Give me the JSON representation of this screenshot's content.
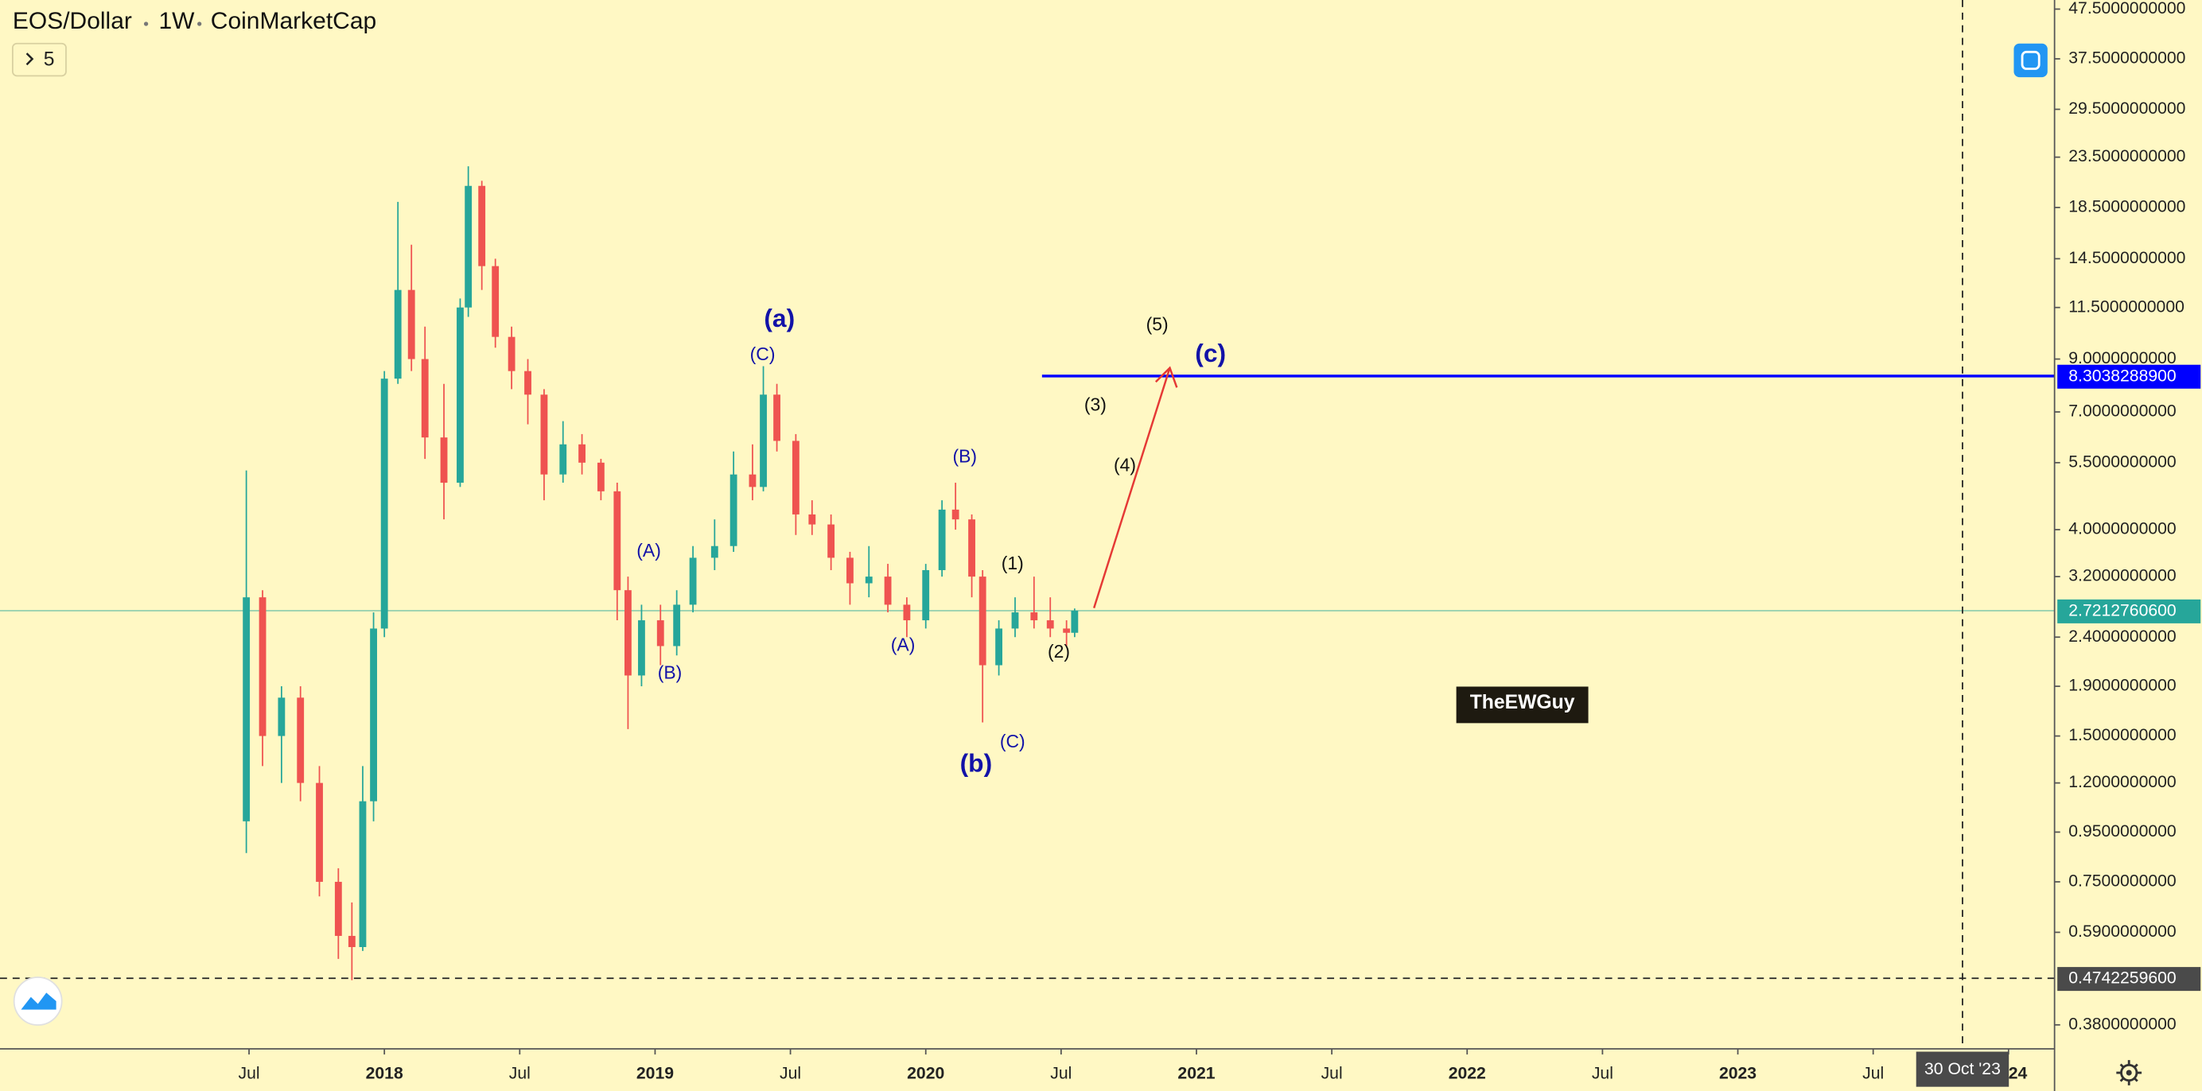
{
  "chart_data": {
    "type": "candlestick",
    "symbol": "EOS/Dollar",
    "interval": "1W",
    "source": "CoinMarketCap",
    "indicators_count": 5,
    "log_scale": true,
    "up_color": "#26a69a",
    "down_color": "#ef5350",
    "xlim": [
      2016.58,
      2024.17
    ],
    "ylim": [
      0.339,
      49.6
    ],
    "xticks": [
      {
        "value": 2017.5,
        "label": "Jul"
      },
      {
        "value": 2018,
        "label": "2018"
      },
      {
        "value": 2018.5,
        "label": "Jul"
      },
      {
        "value": 2019,
        "label": "2019"
      },
      {
        "value": 2019.5,
        "label": "Jul"
      },
      {
        "value": 2020,
        "label": "2020"
      },
      {
        "value": 2020.5,
        "label": "Jul"
      },
      {
        "value": 2021,
        "label": "2021"
      },
      {
        "value": 2021.5,
        "label": "Jul"
      },
      {
        "value": 2022,
        "label": "2022"
      },
      {
        "value": 2022.5,
        "label": "Jul"
      },
      {
        "value": 2023,
        "label": "2023"
      },
      {
        "value": 2023.5,
        "label": "Jul"
      },
      {
        "value": 2024,
        "label": "2024"
      }
    ],
    "yticks": [
      {
        "value": 47.5,
        "label": "47.5000000000"
      },
      {
        "value": 37.5,
        "label": "37.5000000000"
      },
      {
        "value": 29.5,
        "label": "29.5000000000"
      },
      {
        "value": 23.5,
        "label": "23.5000000000"
      },
      {
        "value": 18.5,
        "label": "18.5000000000"
      },
      {
        "value": 14.5,
        "label": "14.5000000000"
      },
      {
        "value": 11.5,
        "label": "11.5000000000"
      },
      {
        "value": 9,
        "label": "9.0000000000"
      },
      {
        "value": 7,
        "label": "7.0000000000"
      },
      {
        "value": 5.5,
        "label": "5.5000000000"
      },
      {
        "value": 4,
        "label": "4.0000000000"
      },
      {
        "value": 3.2,
        "label": "3.2000000000"
      },
      {
        "value": 2.4,
        "label": "2.4000000000"
      },
      {
        "value": 1.9,
        "label": "1.9000000000"
      },
      {
        "value": 1.5,
        "label": "1.5000000000"
      },
      {
        "value": 1.2,
        "label": "1.2000000000"
      },
      {
        "value": 0.95,
        "label": "0.9500000000"
      },
      {
        "value": 0.75,
        "label": "0.7500000000"
      },
      {
        "value": 0.59,
        "label": "0.5900000000"
      },
      {
        "value": 0.38,
        "label": "0.3800000000"
      }
    ],
    "candles": {
      "x": [
        2017.49,
        2017.55,
        2017.62,
        2017.69,
        2017.76,
        2017.83,
        2017.88,
        2017.92,
        2017.96,
        2018.0,
        2018.05,
        2018.1,
        2018.15,
        2018.22,
        2018.28,
        2018.31,
        2018.36,
        2018.41,
        2018.47,
        2018.53,
        2018.59,
        2018.66,
        2018.73,
        2018.8,
        2018.86,
        2018.9,
        2018.95,
        2019.02,
        2019.08,
        2019.14,
        2019.22,
        2019.29,
        2019.36,
        2019.4,
        2019.45,
        2019.52,
        2019.58,
        2019.65,
        2019.72,
        2019.79,
        2019.86,
        2019.93,
        2020.0,
        2020.06,
        2020.11,
        2020.17,
        2020.21,
        2020.27,
        2020.33,
        2020.4,
        2020.46,
        2020.52,
        2020.55
      ],
      "open": [
        1.0,
        2.9,
        1.5,
        1.8,
        1.2,
        0.75,
        0.58,
        0.55,
        1.1,
        2.5,
        8.2,
        12.5,
        9.0,
        6.2,
        5.0,
        11.5,
        20.5,
        14.0,
        10.0,
        8.5,
        7.6,
        5.2,
        6.0,
        5.5,
        4.8,
        3.0,
        2.0,
        2.6,
        2.3,
        2.8,
        3.5,
        3.7,
        5.2,
        4.9,
        7.6,
        6.1,
        4.3,
        4.1,
        3.5,
        3.1,
        3.2,
        2.8,
        2.6,
        3.3,
        4.4,
        4.2,
        3.2,
        2.1,
        2.5,
        2.7,
        2.6,
        2.5,
        2.45
      ],
      "high": [
        5.3,
        3.0,
        1.9,
        1.9,
        1.3,
        0.8,
        0.68,
        1.3,
        2.7,
        8.5,
        19.0,
        15.5,
        10.5,
        8.0,
        12.0,
        22.5,
        21.0,
        14.5,
        10.5,
        9.0,
        7.8,
        6.7,
        6.3,
        5.6,
        5.0,
        3.2,
        2.8,
        2.8,
        3.0,
        3.7,
        4.2,
        5.8,
        6.0,
        8.7,
        8.0,
        6.3,
        4.6,
        4.3,
        3.6,
        3.7,
        3.4,
        2.9,
        3.4,
        4.6,
        5.0,
        4.3,
        3.3,
        2.6,
        2.9,
        3.2,
        2.9,
        2.6,
        2.75
      ],
      "low": [
        0.86,
        1.3,
        1.2,
        1.1,
        0.7,
        0.52,
        0.47,
        0.54,
        1.0,
        2.4,
        8.0,
        8.5,
        5.6,
        4.2,
        4.9,
        11.0,
        12.5,
        9.5,
        7.8,
        6.6,
        4.6,
        5.0,
        5.2,
        4.6,
        2.6,
        1.55,
        1.9,
        2.1,
        2.2,
        2.7,
        3.3,
        3.6,
        4.6,
        4.8,
        5.8,
        3.9,
        3.9,
        3.3,
        2.8,
        2.9,
        2.7,
        2.4,
        2.5,
        3.2,
        4.0,
        2.9,
        1.6,
        2.0,
        2.4,
        2.5,
        2.4,
        2.3,
        2.4
      ],
      "close": [
        2.9,
        1.5,
        1.8,
        1.2,
        0.75,
        0.58,
        0.55,
        1.1,
        2.5,
        8.2,
        12.5,
        9.0,
        6.2,
        5.0,
        11.5,
        20.5,
        14.0,
        10.0,
        8.5,
        7.6,
        5.2,
        6.0,
        5.5,
        4.8,
        3.0,
        2.0,
        2.6,
        2.3,
        2.8,
        3.5,
        3.7,
        5.2,
        4.9,
        7.6,
        6.1,
        4.3,
        4.1,
        3.5,
        3.1,
        3.2,
        2.8,
        2.6,
        3.3,
        4.4,
        4.2,
        3.2,
        2.1,
        2.5,
        2.7,
        2.6,
        2.5,
        2.45,
        2.72127606
      ]
    },
    "last_price": {
      "value": 2.72127606,
      "label": "2.7212760600",
      "color": "#26a69a"
    },
    "target_line": {
      "value": 8.30382889,
      "label": "8.3038288900",
      "color": "#0000ff"
    },
    "crosshair": {
      "x": {
        "value": 2023.83,
        "label": "30 Oct '23"
      },
      "y": {
        "value": 0.47422596,
        "label": "0.4742259600"
      }
    },
    "annotations": [
      {
        "text": "(a)",
        "color": "#1212a8"
      },
      {
        "text": "(C)",
        "color": "#1212a8"
      },
      {
        "text": "(A)",
        "color": "#1212a8"
      },
      {
        "text": "(B)",
        "color": "#1212a8"
      },
      {
        "text": "(A)",
        "color": "#1212a8"
      },
      {
        "text": "(B)",
        "color": "#1212a8"
      },
      {
        "text": "(C)",
        "color": "#1212a8"
      },
      {
        "text": "(b)",
        "color": "#1212a8"
      },
      {
        "text": "(1)",
        "color": "#111111"
      },
      {
        "text": "(2)",
        "color": "#111111"
      },
      {
        "text": "(3)",
        "color": "#111111"
      },
      {
        "text": "(4)",
        "color": "#111111"
      },
      {
        "text": "(5)",
        "color": "#111111"
      },
      {
        "text": "(c)",
        "color": "#1212a8"
      }
    ],
    "watermark": "TheEWGuy"
  }
}
